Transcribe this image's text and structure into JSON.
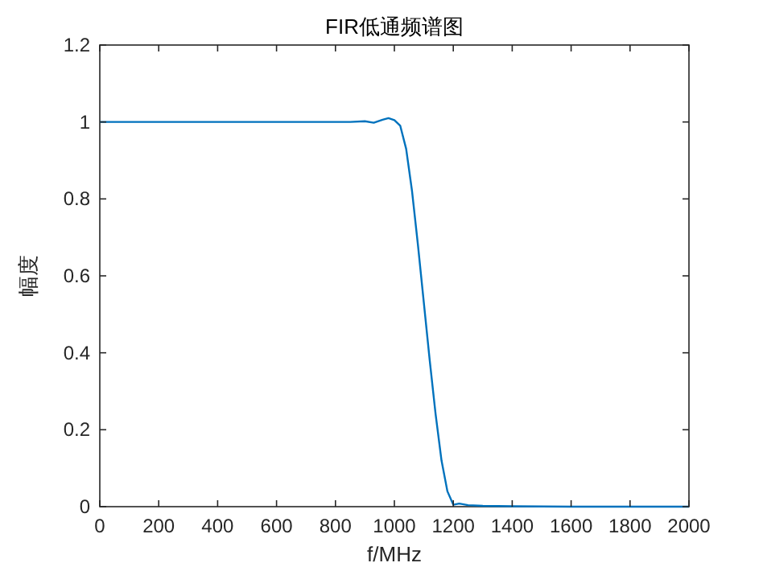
{
  "chart_data": {
    "type": "line",
    "title": "FIR低通频谱图",
    "xlabel": "f/MHz",
    "ylabel": "幅度",
    "x": [
      0,
      200,
      400,
      600,
      800,
      850,
      900,
      930,
      960,
      980,
      1000,
      1020,
      1040,
      1060,
      1080,
      1100,
      1120,
      1140,
      1160,
      1180,
      1200,
      1220,
      1250,
      1300,
      1400,
      1600,
      1800,
      2000
    ],
    "series": [
      {
        "color": "#0072bd",
        "values": [
          1,
          1,
          1,
          1,
          1,
          1.0,
          1.002,
          0.998,
          1.006,
          1.01,
          1.005,
          0.99,
          0.93,
          0.82,
          0.68,
          0.53,
          0.38,
          0.24,
          0.12,
          0.04,
          0.005,
          0.008,
          0.004,
          0.002,
          0.001,
          0,
          0,
          0
        ]
      }
    ],
    "xlim": [
      0,
      2000
    ],
    "ylim": [
      0,
      1.2
    ],
    "xticks": [
      0,
      200,
      400,
      600,
      800,
      1000,
      1200,
      1400,
      1600,
      1800,
      2000
    ],
    "yticks": [
      0,
      0.2,
      0.4,
      0.6,
      0.8,
      1,
      1.2
    ],
    "grid": false,
    "marker": "none",
    "line_style": "solid"
  }
}
